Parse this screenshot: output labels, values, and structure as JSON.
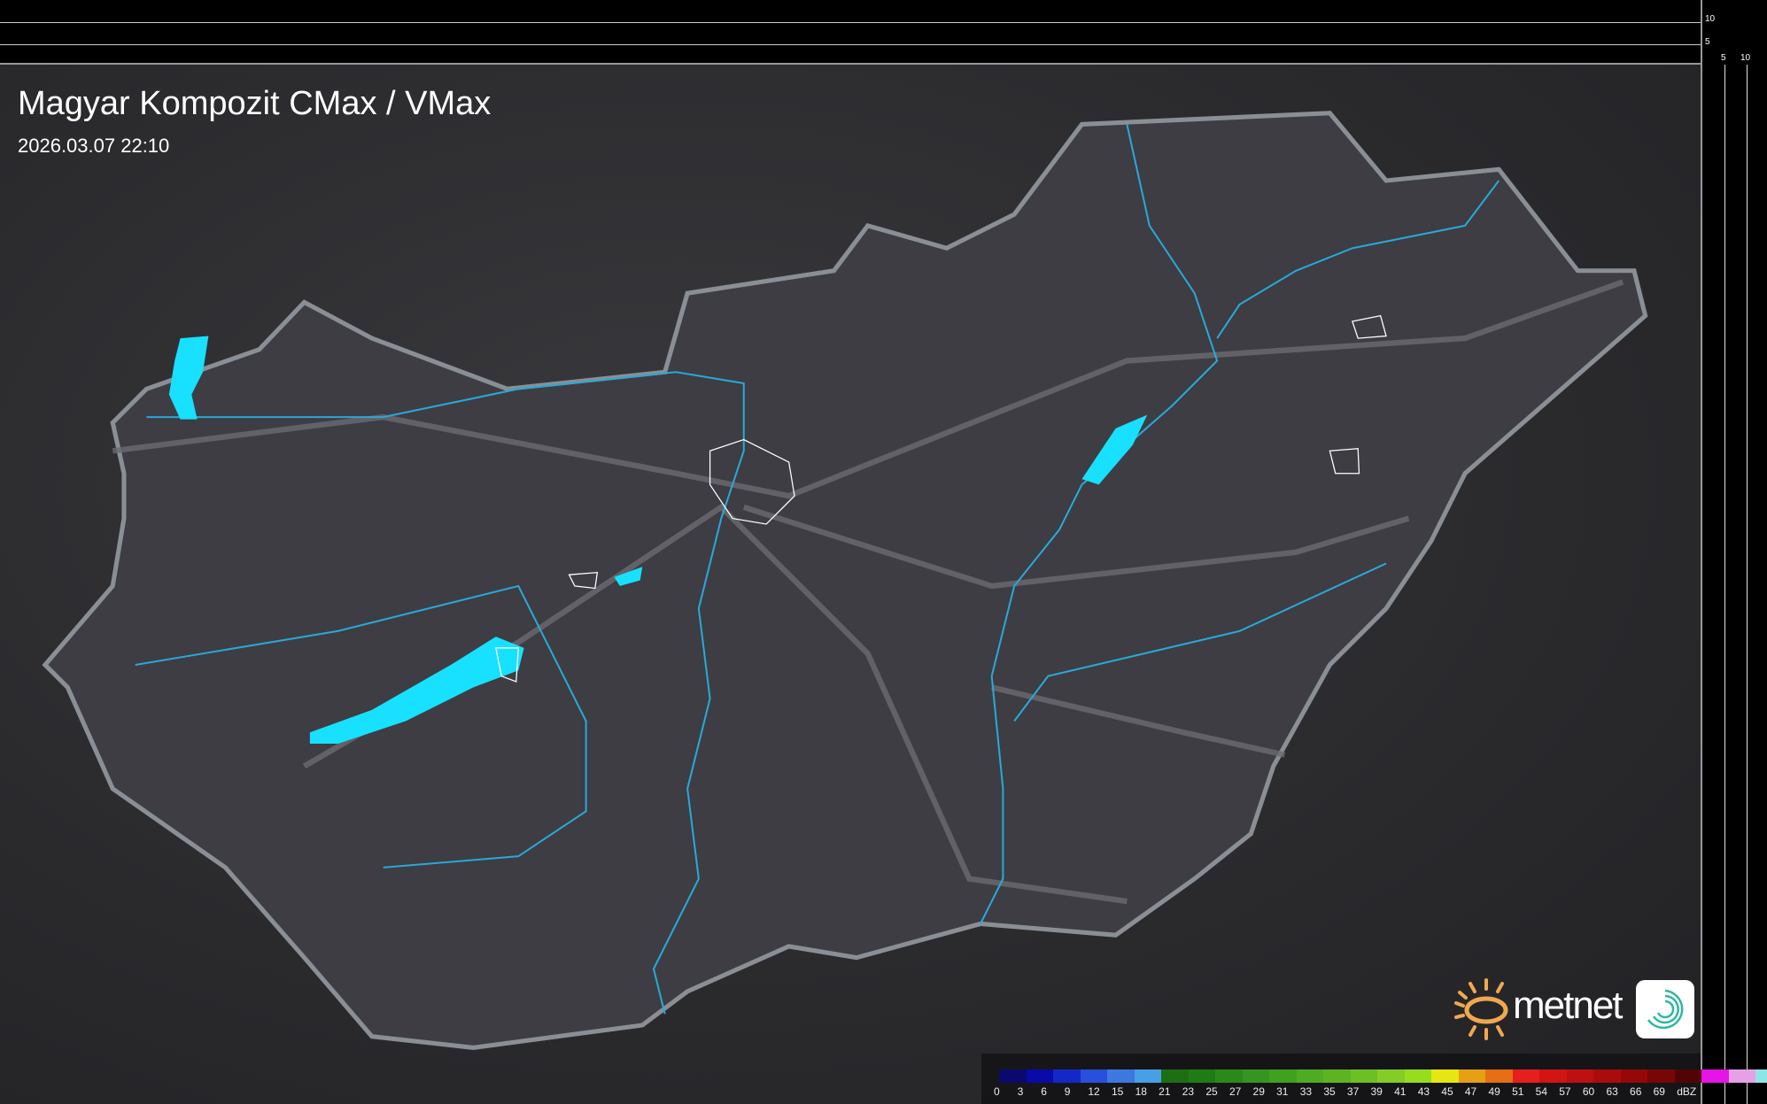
{
  "header": {
    "title": "Magyar Kompozit CMax / VMax",
    "datetime": "2026.03.07 22:10"
  },
  "side_axes": {
    "vertical_ticks": [
      "10",
      "5"
    ],
    "horizontal_ticks": [
      "5",
      "10"
    ]
  },
  "legend": {
    "unit": "dBZ",
    "labels": [
      "0",
      "3",
      "6",
      "9",
      "12",
      "15",
      "18",
      "21",
      "23",
      "25",
      "27",
      "29",
      "31",
      "33",
      "35",
      "37",
      "39",
      "41",
      "43",
      "45",
      "47",
      "49",
      "51",
      "54",
      "57",
      "60",
      "63",
      "66",
      "69"
    ],
    "colors": [
      "#0a0a6e",
      "#0a0aa8",
      "#1428c8",
      "#2850dc",
      "#3c78e0",
      "#46a0e6",
      "#1e6e14",
      "#1e7c14",
      "#2a8a18",
      "#349620",
      "#40a020",
      "#4eac22",
      "#5cb422",
      "#6cc024",
      "#84cc26",
      "#98dc1e",
      "#e6e614",
      "#e6a014",
      "#e66e14",
      "#e61e1e",
      "#d21414",
      "#be1010",
      "#aa0c0c",
      "#960808",
      "#780606",
      "#500404",
      "#e614e6",
      "#e6a0e6",
      "#8ce6e6"
    ]
  },
  "logo": {
    "brand": "metnet"
  },
  "map_colors": {
    "land": "#3c3c42",
    "border": "#8a8f96",
    "river": "#2aa8d8",
    "lake": "#18e0ff",
    "road": "#6a6a70"
  }
}
